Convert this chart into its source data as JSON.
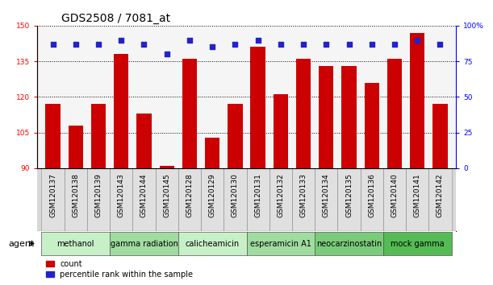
{
  "title": "GDS2508 / 7081_at",
  "samples": [
    "GSM120137",
    "GSM120138",
    "GSM120139",
    "GSM120143",
    "GSM120144",
    "GSM120145",
    "GSM120128",
    "GSM120129",
    "GSM120130",
    "GSM120131",
    "GSM120132",
    "GSM120133",
    "GSM120134",
    "GSM120135",
    "GSM120136",
    "GSM120140",
    "GSM120141",
    "GSM120142"
  ],
  "counts": [
    117,
    108,
    117,
    138,
    113,
    91,
    136,
    103,
    117,
    141,
    121,
    136,
    133,
    133,
    126,
    136,
    147,
    117
  ],
  "percentile_ranks": [
    87,
    87,
    87,
    90,
    87,
    80,
    90,
    85,
    87,
    90,
    87,
    87,
    87,
    87,
    87,
    87,
    90,
    87
  ],
  "groups": [
    {
      "label": "methanol",
      "start": 0,
      "end": 3,
      "color": "#c8f0c8"
    },
    {
      "label": "gamma radiation",
      "start": 3,
      "end": 6,
      "color": "#a0dca0"
    },
    {
      "label": "calicheamicin",
      "start": 6,
      "end": 9,
      "color": "#c8f0c8"
    },
    {
      "label": "esperamicin A1",
      "start": 9,
      "end": 12,
      "color": "#a0dca0"
    },
    {
      "label": "neocarzinostatin",
      "start": 12,
      "end": 15,
      "color": "#7acc7a"
    },
    {
      "label": "mock gamma",
      "start": 15,
      "end": 18,
      "color": "#55bb55"
    }
  ],
  "ylim_left": [
    90,
    150
  ],
  "ylim_right": [
    0,
    100
  ],
  "yticks_left": [
    90,
    105,
    120,
    135,
    150
  ],
  "yticks_right": [
    0,
    25,
    50,
    75,
    100
  ],
  "bar_color": "#cc0000",
  "dot_color": "#2222cc",
  "legend_count_label": "count",
  "legend_percentile_label": "percentile rank within the sample",
  "tick_fontsize": 6.5,
  "group_fontsize": 7,
  "title_fontsize": 10
}
